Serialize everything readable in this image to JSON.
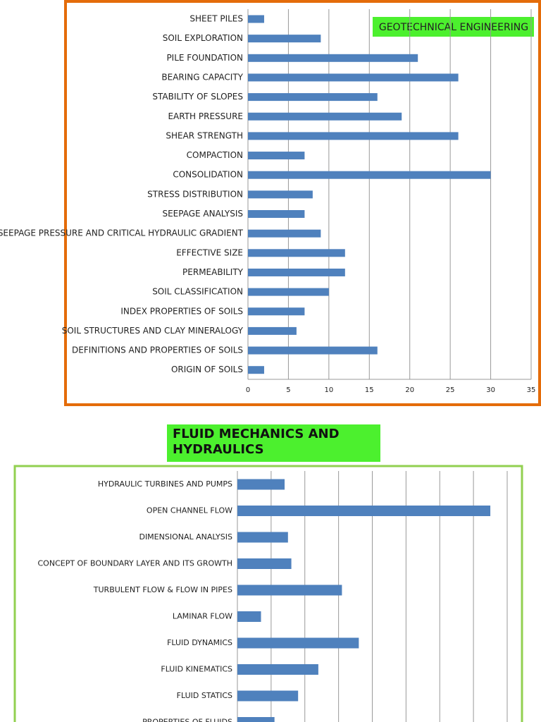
{
  "chart_data": [
    {
      "type": "bar",
      "orientation": "horizontal",
      "title": "GEOTECHNICAL ENGINEERING",
      "categories": [
        "SHEET PILES",
        "SOIL EXPLORATION",
        "PILE FOUNDATION",
        "BEARING CAPACITY",
        "STABILITY OF SLOPES",
        "EARTH PRESSURE",
        "SHEAR STRENGTH",
        "COMPACTION",
        "CONSOLIDATION",
        "STRESS DISTRIBUTION",
        "SEEPAGE ANALYSIS",
        "SEEPAGE PRESSURE AND CRITICAL HYDRAULIC GRADIENT",
        "EFFECTIVE SIZE",
        "PERMEABILITY",
        "SOIL CLASSIFICATION",
        "INDEX PROPERTIES OF SOILS",
        "SOIL STRUCTURES AND CLAY MINERALOGY",
        "DEFINITIONS AND PROPERTIES OF SOILS",
        "ORIGIN OF SOILS"
      ],
      "values": [
        2,
        9,
        21,
        26,
        16,
        19,
        26,
        7,
        30,
        8,
        7,
        9,
        12,
        12,
        10,
        7,
        6,
        16,
        2
      ],
      "color": "#4f81bd",
      "xlim": [
        0,
        35
      ],
      "xticks": [
        0,
        5,
        10,
        15,
        20,
        25,
        30,
        35
      ],
      "grid": true
    },
    {
      "type": "bar",
      "orientation": "horizontal",
      "title": "FLUID MECHANICS AND HYDRAULICS",
      "categories": [
        "HYDRAULIC TURBINES AND PUMPS",
        "OPEN CHANNEL FLOW",
        "DIMENSIONAL ANALYSIS",
        "CONCEPT OF BOUNDARY LAYER AND ITS GROWTH",
        "TURBULENT FLOW & FLOW IN PIPES",
        "LAMINAR FLOW",
        "FLUID DYNAMICS",
        "FLUID KINEMATICS",
        "FLUID STATICS",
        "PROPERTIES OF FLUIDS"
      ],
      "values": [
        2.8,
        15,
        3,
        3.2,
        6.2,
        1.4,
        7.2,
        4.8,
        3.6,
        2.2
      ],
      "color": "#4f81bd",
      "xlim": [
        0,
        16
      ],
      "xticks": [
        0,
        2,
        4,
        6,
        8,
        10,
        12,
        14,
        16
      ],
      "grid": true
    }
  ]
}
